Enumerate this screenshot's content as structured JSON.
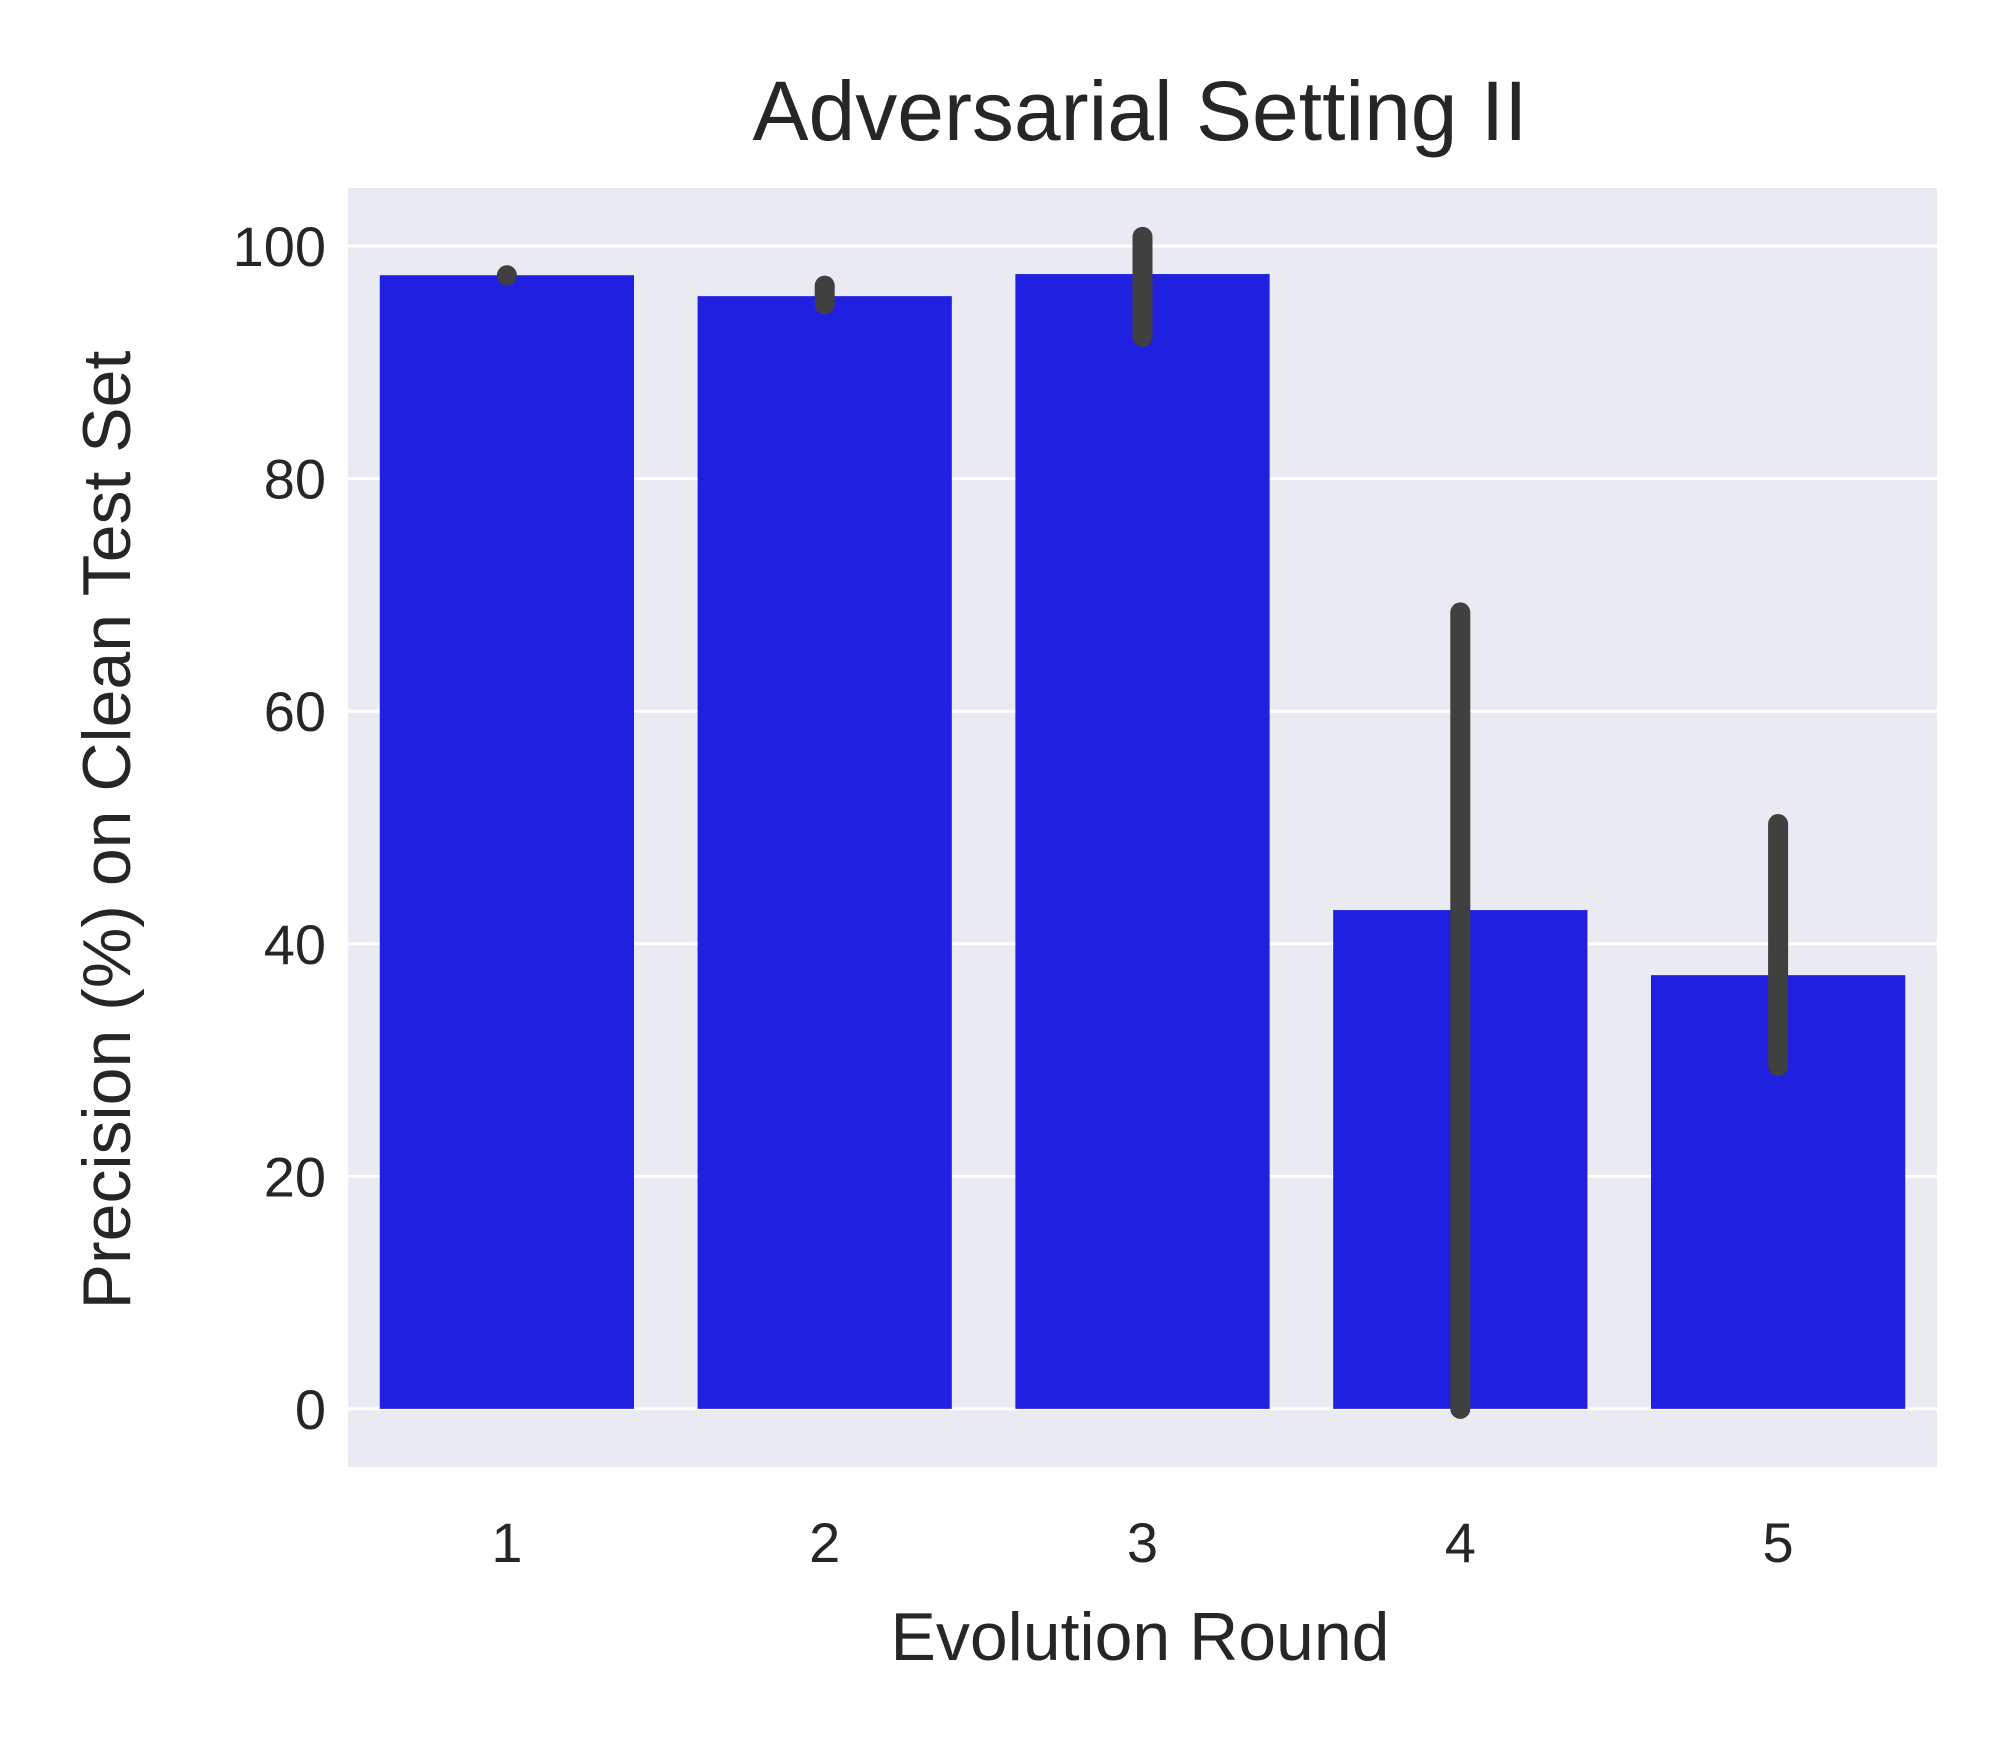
{
  "chart_data": {
    "type": "bar",
    "title": "Adversarial Setting II",
    "xlabel": "Evolution Round",
    "ylabel": "Precision (%) on Clean Test Set",
    "categories": [
      "1",
      "2",
      "3",
      "4",
      "5"
    ],
    "values": [
      97.5,
      95.7,
      97.6,
      42.9,
      37.3
    ],
    "error_low": [
      97.5,
      95.0,
      92.2,
      0.0,
      29.5
    ],
    "error_high": [
      97.5,
      96.6,
      100.8,
      68.5,
      50.3
    ],
    "ylim": [
      -5,
      105
    ],
    "yticks": [
      0,
      20,
      40,
      60,
      80,
      100
    ],
    "grid": true,
    "colors": {
      "bar": "#2020e0",
      "error_bar": "#404040",
      "plot_background": "#eaeaf2",
      "grid": "#ffffff",
      "text": "#262626"
    }
  }
}
